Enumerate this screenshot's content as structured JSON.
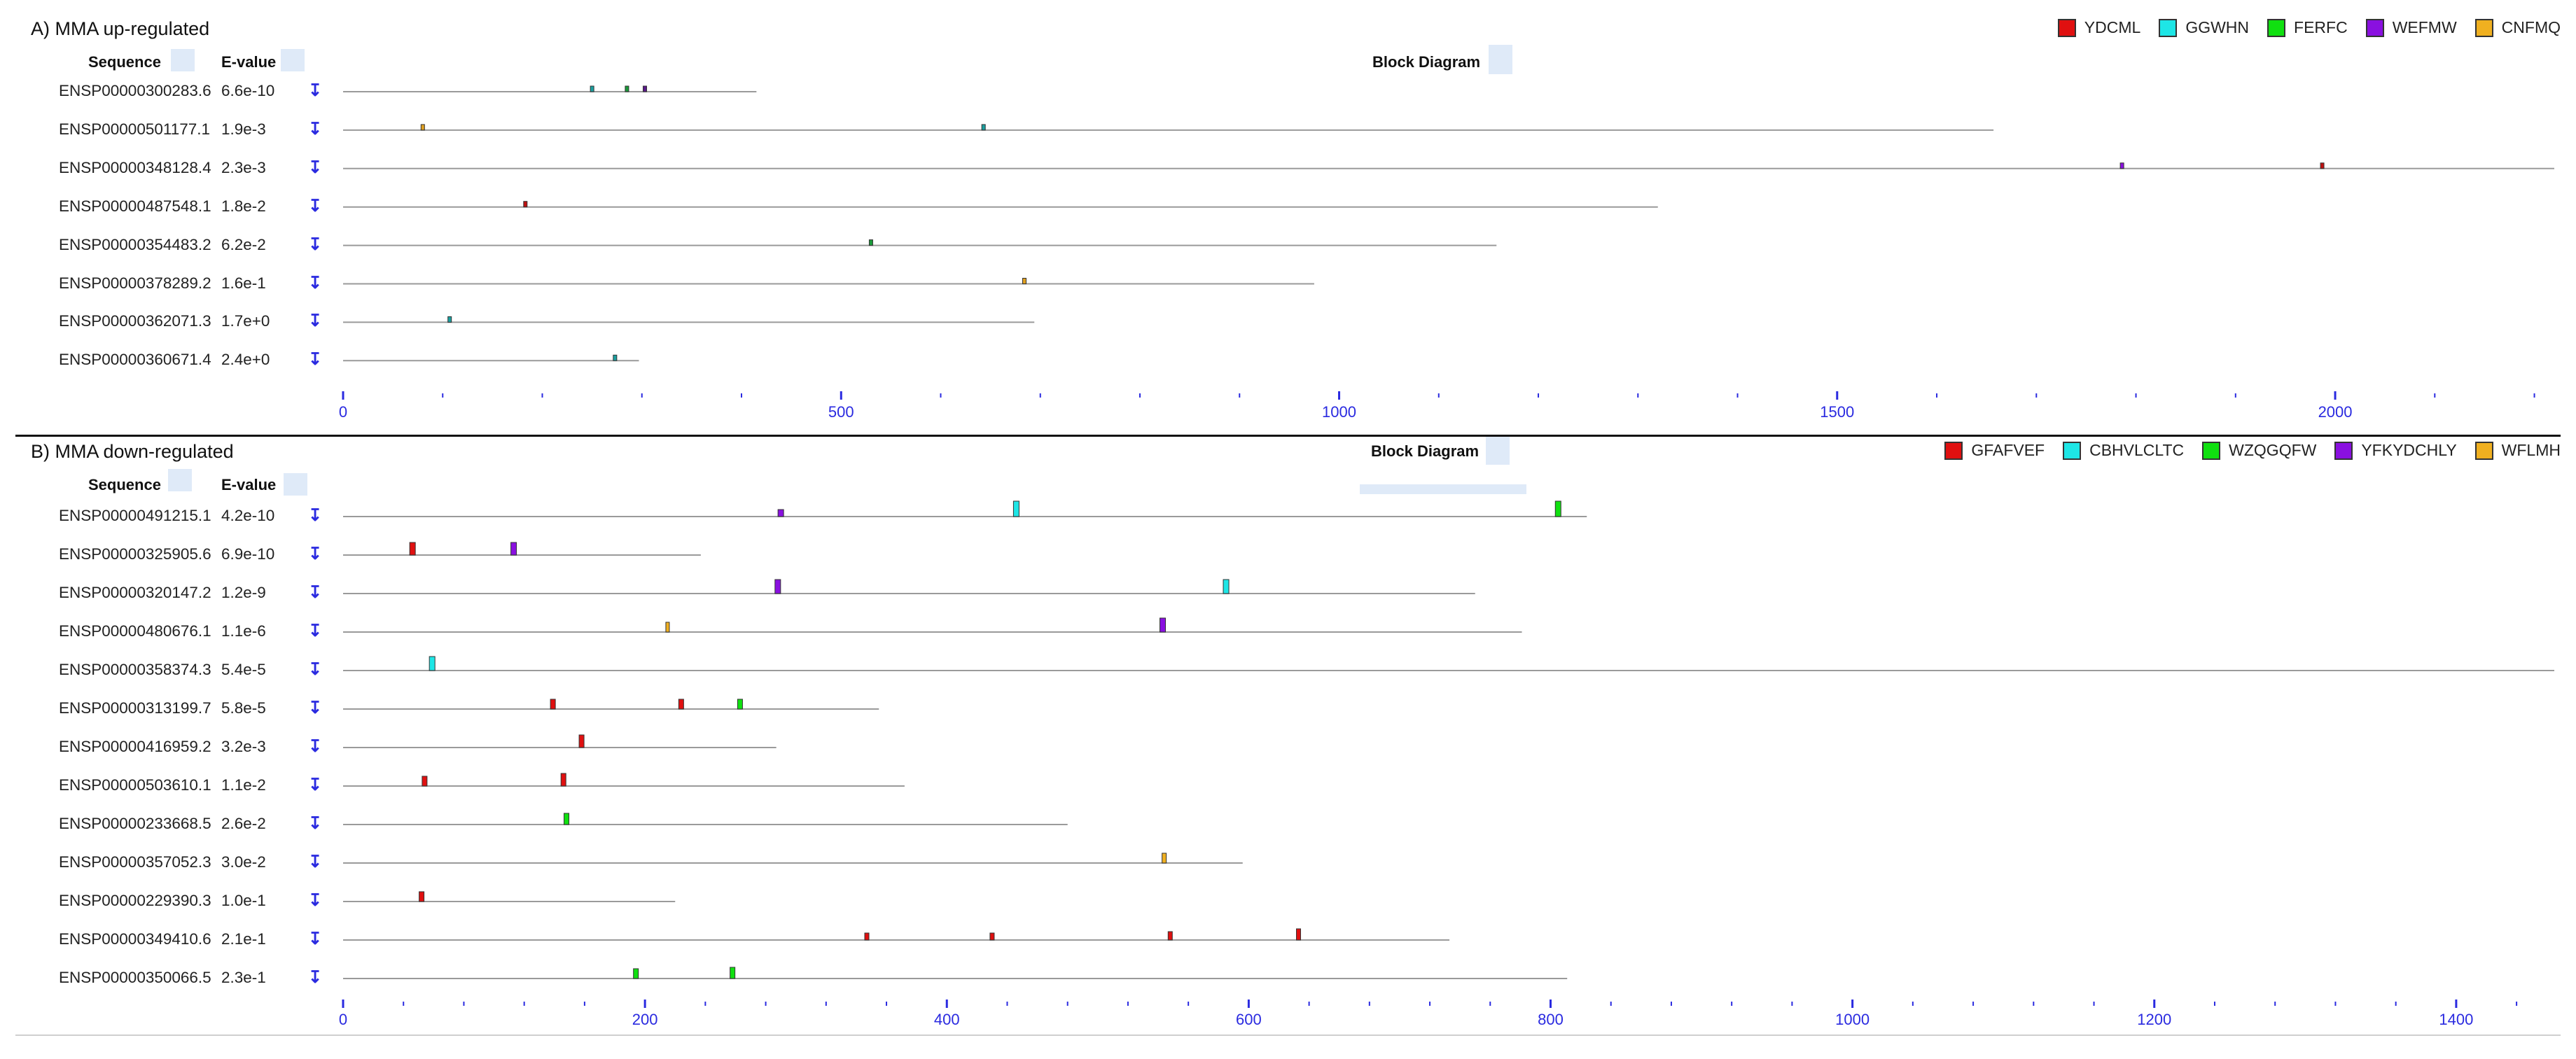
{
  "panels": [
    {
      "title": "A) MMA up-regulated",
      "headers": {
        "sequence": "Sequence",
        "evalue": "E-value",
        "block": "Block Diagram"
      },
      "legend": [
        {
          "name": "YDCML",
          "color": "#e01010"
        },
        {
          "name": "GGWHN",
          "color": "#1ee6e6"
        },
        {
          "name": "FERFC",
          "color": "#10e010"
        },
        {
          "name": "WEFMW",
          "color": "#8a10e0"
        },
        {
          "name": "CNFMQ",
          "color": "#f0b020"
        }
      ],
      "axis": {
        "max": 2220,
        "major_ticks": [
          0,
          500,
          1000,
          1500,
          2000
        ],
        "minor_step": 100
      },
      "rows": [
        {
          "id": "ENSP00000300283.6",
          "evalue": "6.6e-10",
          "length": 415,
          "motifs": [
            {
              "m": "GGWHN",
              "pos": 250,
              "w": 5,
              "h": 8,
              "c": "#1aa0a0"
            },
            {
              "m": "FERFC",
              "pos": 285,
              "w": 5,
              "h": 8,
              "c": "#1a9a3a"
            },
            {
              "m": "WEFMW",
              "pos": 303,
              "w": 5,
              "h": 8,
              "c": "#5a1a8a"
            }
          ]
        },
        {
          "id": "ENSP00000501177.1",
          "evalue": "1.9e-3",
          "length": 1657,
          "motifs": [
            {
              "m": "CNFMQ",
              "pos": 80,
              "w": 5,
              "h": 8,
              "c": "#e0a020"
            },
            {
              "m": "GGWHN",
              "pos": 643,
              "w": 5,
              "h": 8,
              "c": "#1aa0a0"
            }
          ]
        },
        {
          "id": "ENSP00000348128.4",
          "evalue": "2.3e-3",
          "length": 2220,
          "motifs": [
            {
              "m": "WEFMW",
              "pos": 1786,
              "w": 5,
              "h": 8,
              "c": "#8a10e0"
            },
            {
              "m": "YDCML",
              "pos": 1987,
              "w": 5,
              "h": 8,
              "c": "#c01010"
            }
          ]
        },
        {
          "id": "ENSP00000487548.1",
          "evalue": "1.8e-2",
          "length": 1320,
          "motifs": [
            {
              "m": "YDCML",
              "pos": 183,
              "w": 5,
              "h": 8,
              "c": "#c01010"
            }
          ]
        },
        {
          "id": "ENSP00000354483.2",
          "evalue": "6.2e-2",
          "length": 1158,
          "motifs": [
            {
              "m": "FERFC",
              "pos": 530,
              "w": 5,
              "h": 8,
              "c": "#1a9a3a"
            }
          ]
        },
        {
          "id": "ENSP00000378289.2",
          "evalue": "1.6e-1",
          "length": 975,
          "motifs": [
            {
              "m": "CNFMQ",
              "pos": 684,
              "w": 5,
              "h": 8,
              "c": "#e0a020"
            }
          ]
        },
        {
          "id": "ENSP00000362071.3",
          "evalue": "1.7e+0",
          "length": 694,
          "motifs": [
            {
              "m": "GGWHN",
              "pos": 107,
              "w": 5,
              "h": 8,
              "c": "#1aa0a0"
            }
          ]
        },
        {
          "id": "ENSP00000360671.4",
          "evalue": "2.4e+0",
          "length": 297,
          "motifs": [
            {
              "m": "GGWHN",
              "pos": 273,
              "w": 5,
              "h": 8,
              "c": "#1aa0a0"
            }
          ]
        }
      ]
    },
    {
      "title": "B) MMA down-regulated",
      "headers": {
        "sequence": "Sequence",
        "evalue": "E-value",
        "block": "Block Diagram"
      },
      "legend": [
        {
          "name": "GFAFVEF",
          "color": "#e01010"
        },
        {
          "name": "CBHVLCLTC",
          "color": "#1ee6e6"
        },
        {
          "name": "WZQGQFW",
          "color": "#10e010"
        },
        {
          "name": "YFKYDCHLY",
          "color": "#8a10e0"
        },
        {
          "name": "WFLMH",
          "color": "#f0b020"
        }
      ],
      "axis": {
        "max": 1465,
        "major_ticks": [
          0,
          200,
          400,
          600,
          800,
          1000,
          1200,
          1400
        ],
        "minor_step": 40
      },
      "rows": [
        {
          "id": "ENSP00000491215.1",
          "evalue": "4.2e-10",
          "length": 824,
          "motifs": [
            {
              "m": "YFKYDCHLY",
              "pos": 290,
              "w": 8,
              "h": 10,
              "c": "#8a10e0"
            },
            {
              "m": "CBHVLCLTC",
              "pos": 446,
              "w": 8,
              "h": 22,
              "c": "#1ee6e6"
            },
            {
              "m": "WZQGQFW",
              "pos": 805,
              "w": 8,
              "h": 22,
              "c": "#10e010"
            }
          ]
        },
        {
          "id": "ENSP00000325905.6",
          "evalue": "6.9e-10",
          "length": 237,
          "motifs": [
            {
              "m": "GFAFVEF",
              "pos": 46,
              "w": 8,
              "h": 18,
              "c": "#e01010"
            },
            {
              "m": "YFKYDCHLY",
              "pos": 113,
              "w": 8,
              "h": 18,
              "c": "#8a10e0"
            }
          ]
        },
        {
          "id": "ENSP00000320147.2",
          "evalue": "1.2e-9",
          "length": 750,
          "motifs": [
            {
              "m": "YFKYDCHLY",
              "pos": 288,
              "w": 8,
              "h": 20,
              "c": "#8a10e0"
            },
            {
              "m": "CBHVLCLTC",
              "pos": 585,
              "w": 8,
              "h": 20,
              "c": "#1ee6e6"
            }
          ]
        },
        {
          "id": "ENSP00000480676.1",
          "evalue": "1.1e-6",
          "length": 781,
          "motifs": [
            {
              "m": "WFLMH",
              "pos": 215,
              "w": 5,
              "h": 14,
              "c": "#f0b020"
            },
            {
              "m": "YFKYDCHLY",
              "pos": 543,
              "w": 8,
              "h": 20,
              "c": "#8a10e0"
            }
          ]
        },
        {
          "id": "ENSP00000358374.3",
          "evalue": "5.4e-5",
          "length": 1465,
          "motifs": [
            {
              "m": "CBHVLCLTC",
              "pos": 59,
              "w": 8,
              "h": 20,
              "c": "#1ee6e6"
            }
          ]
        },
        {
          "id": "ENSP00000313199.7",
          "evalue": "5.8e-5",
          "length": 355,
          "motifs": [
            {
              "m": "GFAFVEF",
              "pos": 139,
              "w": 7,
              "h": 14,
              "c": "#e01010"
            },
            {
              "m": "GFAFVEF",
              "pos": 224,
              "w": 7,
              "h": 14,
              "c": "#e01010"
            },
            {
              "m": "WZQGQFW",
              "pos": 263,
              "w": 7,
              "h": 14,
              "c": "#10e010"
            }
          ]
        },
        {
          "id": "ENSP00000416959.2",
          "evalue": "3.2e-3",
          "length": 287,
          "motifs": [
            {
              "m": "GFAFVEF",
              "pos": 158,
              "w": 7,
              "h": 18,
              "c": "#e01010"
            }
          ]
        },
        {
          "id": "ENSP00000503610.1",
          "evalue": "1.1e-2",
          "length": 372,
          "motifs": [
            {
              "m": "GFAFVEF",
              "pos": 54,
              "w": 7,
              "h": 14,
              "c": "#e01010"
            },
            {
              "m": "GFAFVEF",
              "pos": 146,
              "w": 7,
              "h": 18,
              "c": "#e01010"
            }
          ]
        },
        {
          "id": "ENSP00000233668.5",
          "evalue": "2.6e-2",
          "length": 480,
          "motifs": [
            {
              "m": "WZQGQFW",
              "pos": 148,
              "w": 7,
              "h": 16,
              "c": "#10e010"
            }
          ]
        },
        {
          "id": "ENSP00000357052.3",
          "evalue": "3.0e-2",
          "length": 596,
          "motifs": [
            {
              "m": "WFLMH",
              "pos": 544,
              "w": 6,
              "h": 14,
              "c": "#f0b020"
            }
          ]
        },
        {
          "id": "ENSP00000229390.3",
          "evalue": "1.0e-1",
          "length": 220,
          "motifs": [
            {
              "m": "GFAFVEF",
              "pos": 52,
              "w": 7,
              "h": 14,
              "c": "#e01010"
            }
          ]
        },
        {
          "id": "ENSP00000349410.6",
          "evalue": "2.1e-1",
          "length": 733,
          "motifs": [
            {
              "m": "GFAFVEF",
              "pos": 347,
              "w": 6,
              "h": 10,
              "c": "#e01010"
            },
            {
              "m": "GFAFVEF",
              "pos": 430,
              "w": 6,
              "h": 10,
              "c": "#e01010"
            },
            {
              "m": "GFAFVEF",
              "pos": 548,
              "w": 6,
              "h": 12,
              "c": "#e01010"
            },
            {
              "m": "GFAFVEF",
              "pos": 633,
              "w": 6,
              "h": 16,
              "c": "#e01010"
            }
          ]
        },
        {
          "id": "ENSP00000350066.5",
          "evalue": "2.3e-1",
          "length": 811,
          "motifs": [
            {
              "m": "WZQGQFW",
              "pos": 194,
              "w": 7,
              "h": 14,
              "c": "#10e010"
            },
            {
              "m": "WZQGQFW",
              "pos": 258,
              "w": 7,
              "h": 16,
              "c": "#10e010"
            }
          ]
        }
      ]
    }
  ]
}
